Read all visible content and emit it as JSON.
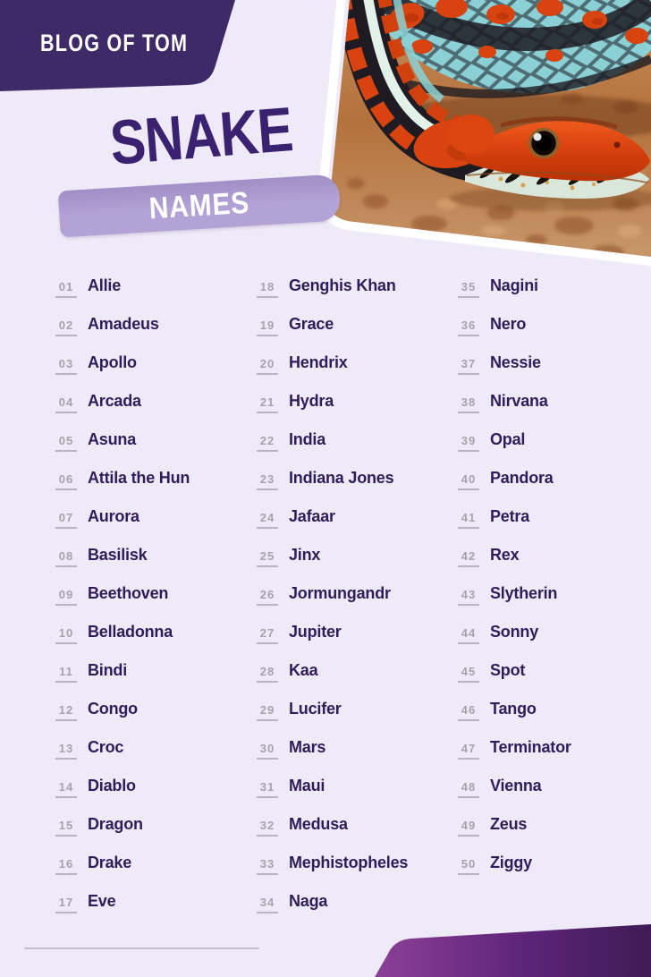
{
  "brand": {
    "label": "BLOG OF TOM"
  },
  "title": {
    "main": "SNAKE",
    "sub": "NAMES"
  },
  "hero": {
    "image": "snake-photo",
    "description": "Close-up of a red and turquoise garter snake coiled on a brown rock",
    "palette": {
      "snake_red": "#d8430f",
      "snake_turquoise": "#8ad0d5",
      "snake_black": "#1e1c22",
      "snake_jaw_pale": "#d9e7da",
      "rock_brown": "#b4713c"
    }
  },
  "colors": {
    "background": "#efeaf7",
    "header_purple": "#3d2a66",
    "title_purple": "#3b2270",
    "banner_lavender": "#b3a2d5",
    "banner_lavender_dark": "#a08ec6",
    "banner_text": "#ffffff",
    "brand_text": "#ffffff",
    "name_text": "#2f1c5a",
    "number_text": "#a5a1ad",
    "number_underline": "#b7b4c0",
    "divider": "#aaa7b3",
    "footer_gradient_start": "#8d4097",
    "footer_gradient_mid": "#5c2478",
    "footer_gradient_end": "#3f1b55"
  },
  "list": {
    "columns": [
      [
        {
          "num": "01",
          "name": "Allie"
        },
        {
          "num": "02",
          "name": "Amadeus"
        },
        {
          "num": "03",
          "name": "Apollo"
        },
        {
          "num": "04",
          "name": "Arcada"
        },
        {
          "num": "05",
          "name": "Asuna"
        },
        {
          "num": "06",
          "name": "Attila the Hun"
        },
        {
          "num": "07",
          "name": "Aurora"
        },
        {
          "num": "08",
          "name": "Basilisk"
        },
        {
          "num": "09",
          "name": "Beethoven"
        },
        {
          "num": "10",
          "name": "Belladonna"
        },
        {
          "num": "11",
          "name": "Bindi"
        },
        {
          "num": "12",
          "name": "Congo"
        },
        {
          "num": "13",
          "name": "Croc"
        },
        {
          "num": "14",
          "name": "Diablo"
        },
        {
          "num": "15",
          "name": "Dragon"
        },
        {
          "num": "16",
          "name": "Drake"
        },
        {
          "num": "17",
          "name": "Eve"
        }
      ],
      [
        {
          "num": "18",
          "name": "Genghis Khan"
        },
        {
          "num": "19",
          "name": "Grace"
        },
        {
          "num": "20",
          "name": "Hendrix"
        },
        {
          "num": "21",
          "name": "Hydra"
        },
        {
          "num": "22",
          "name": "India"
        },
        {
          "num": "23",
          "name": "Indiana Jones"
        },
        {
          "num": "24",
          "name": "Jafaar"
        },
        {
          "num": "25",
          "name": "Jinx"
        },
        {
          "num": "26",
          "name": "Jormungandr"
        },
        {
          "num": "27",
          "name": "Jupiter"
        },
        {
          "num": "28",
          "name": "Kaa"
        },
        {
          "num": "29",
          "name": "Lucifer"
        },
        {
          "num": "30",
          "name": "Mars"
        },
        {
          "num": "31",
          "name": "Maui"
        },
        {
          "num": "32",
          "name": "Medusa"
        },
        {
          "num": "33",
          "name": "Mephistopheles"
        },
        {
          "num": "34",
          "name": "Naga"
        }
      ],
      [
        {
          "num": "35",
          "name": "Nagini"
        },
        {
          "num": "36",
          "name": "Nero"
        },
        {
          "num": "37",
          "name": "Nessie"
        },
        {
          "num": "38",
          "name": "Nirvana"
        },
        {
          "num": "39",
          "name": "Opal"
        },
        {
          "num": "40",
          "name": "Pandora"
        },
        {
          "num": "41",
          "name": "Petra"
        },
        {
          "num": "42",
          "name": "Rex"
        },
        {
          "num": "43",
          "name": "Slytherin"
        },
        {
          "num": "44",
          "name": "Sonny"
        },
        {
          "num": "45",
          "name": "Spot"
        },
        {
          "num": "46",
          "name": "Tango"
        },
        {
          "num": "47",
          "name": "Terminator"
        },
        {
          "num": "48",
          "name": "Vienna"
        },
        {
          "num": "49",
          "name": "Zeus"
        },
        {
          "num": "50",
          "name": "Ziggy"
        }
      ]
    ]
  }
}
